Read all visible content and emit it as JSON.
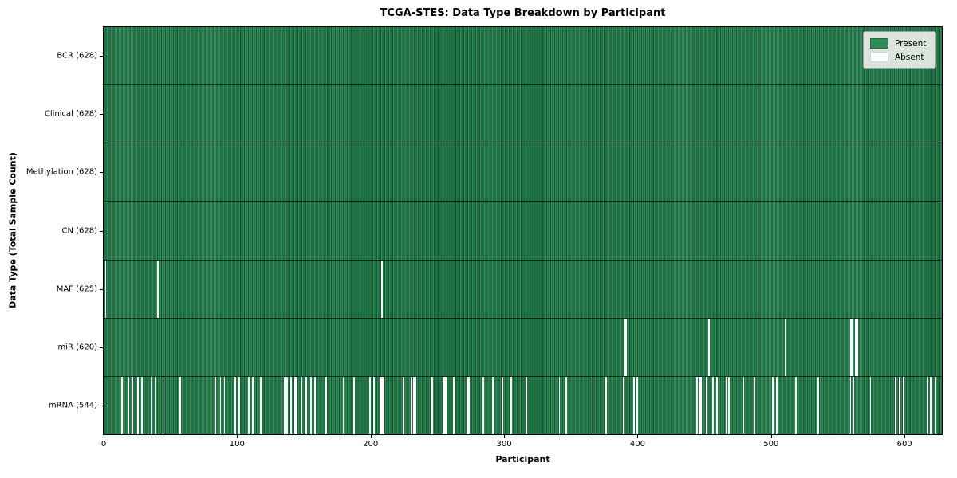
{
  "chart_data": {
    "type": "heatmap",
    "title": "TCGA-STES: Data Type Breakdown by Participant",
    "xlabel": "Participant",
    "ylabel": "Data Type (Total Sample Count)",
    "xlim": [
      0,
      628
    ],
    "x_ticks": [
      0,
      100,
      200,
      300,
      400,
      500,
      600
    ],
    "n_participants": 628,
    "grid": false,
    "legend": {
      "position": "upper right",
      "entries": [
        {
          "label": "Present",
          "color": "#2e8b57"
        },
        {
          "label": "Absent",
          "color": "#ffffff"
        }
      ]
    },
    "colors": {
      "present": "#2e8b57",
      "absent": "#ffffff",
      "bar_edge": "#1d5737"
    },
    "rows": [
      {
        "label": "BCR (628)",
        "data_type": "BCR",
        "present_count": 628,
        "absent_participants": []
      },
      {
        "label": "Clinical (628)",
        "data_type": "Clinical",
        "present_count": 628,
        "absent_participants": []
      },
      {
        "label": "Methylation (628)",
        "data_type": "Methylation",
        "present_count": 628,
        "absent_participants": []
      },
      {
        "label": "CN (628)",
        "data_type": "CN",
        "present_count": 628,
        "absent_participants": []
      },
      {
        "label": "MAF (625)",
        "data_type": "MAF",
        "present_count": 625,
        "absent_participants": [
          1,
          40,
          208
        ]
      },
      {
        "label": "miR (620)",
        "data_type": "miR",
        "present_count": 620,
        "absent_participants": [
          390,
          391,
          453,
          510,
          559,
          560,
          563,
          564
        ]
      },
      {
        "label": "mRNA (544)",
        "data_type": "mRNA",
        "present_count": 544,
        "absent_participants": [
          13,
          18,
          21,
          25,
          28,
          35,
          38,
          44,
          56,
          57,
          83,
          87,
          90,
          98,
          101,
          108,
          111,
          117,
          133,
          135,
          137,
          140,
          143,
          144,
          148,
          151,
          155,
          158,
          166,
          179,
          187,
          199,
          202,
          207,
          208,
          209,
          224,
          230,
          232,
          233,
          245,
          246,
          254,
          255,
          256,
          262,
          272,
          273,
          284,
          291,
          298,
          305,
          316,
          341,
          346,
          366,
          376,
          389,
          397,
          399,
          444,
          446,
          447,
          451,
          456,
          459,
          466,
          468,
          479,
          487,
          501,
          504,
          518,
          535,
          559,
          561,
          574,
          593,
          596,
          599,
          617,
          619,
          620,
          623
        ]
      }
    ]
  }
}
